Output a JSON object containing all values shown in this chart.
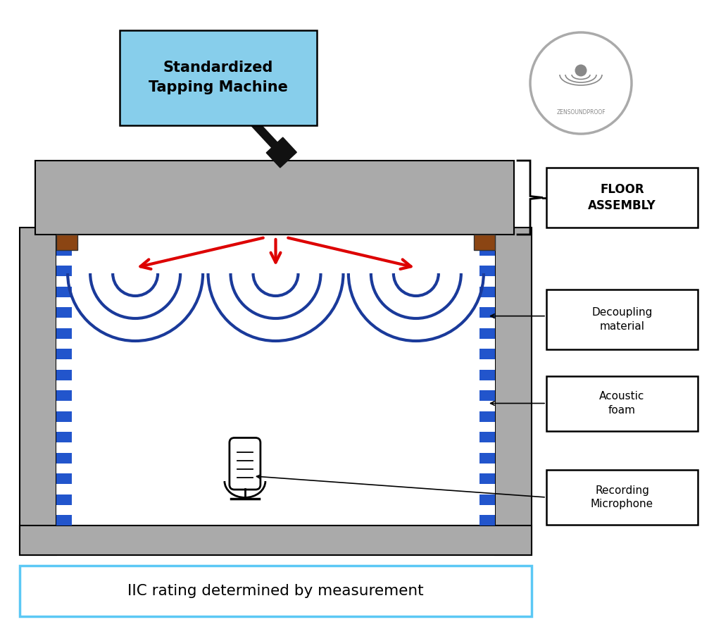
{
  "bg_color": "#ffffff",
  "title_text": "IIC rating determined by measurement",
  "title_box_color": "#ffffff",
  "title_border_color": "#5bc8f5",
  "tapping_label": "Standardized\nTapping Machine",
  "tapping_box_color": "#87ceeb",
  "floor_label": "FLOOR\nASSEMBLY",
  "decoupling_label": "Decoupling\nmaterial",
  "foam_label": "Acoustic\nfoam",
  "mic_label": "Recording\nMicrophone",
  "logo_text": "ZENSOUNDPROOF",
  "wall_color": "#aaaaaa",
  "inner_bg": "#ffffff",
  "checkered_color1": "#ffffff",
  "checkered_color2": "#2255cc",
  "wood_color": "#8B4513",
  "arrow_color": "#dd0000",
  "hammer_color": "#111111",
  "wave_color": "#1a3a9a",
  "fig_width": 10.24,
  "fig_height": 8.83,
  "xlim": [
    0,
    10.24
  ],
  "ylim": [
    0,
    8.83
  ]
}
